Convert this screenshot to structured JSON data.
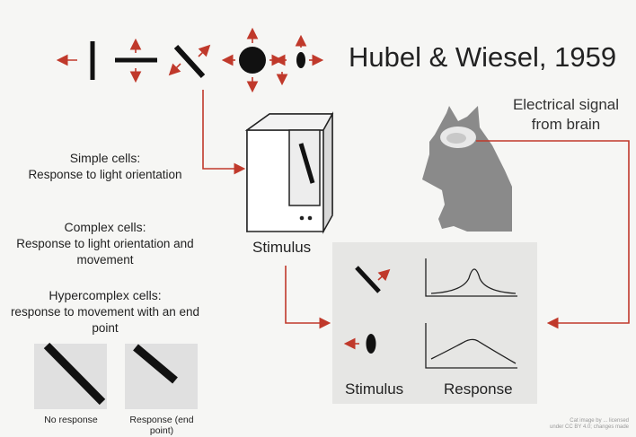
{
  "title": "Hubel & Wiesel, 1959",
  "electrical_label": "Electrical signal from brain",
  "monitor_label": "Stimulus",
  "cells": [
    {
      "heading": "Simple cells:",
      "desc": "Response to light orientation"
    },
    {
      "heading": "Complex cells:",
      "desc": "Response to light orientation and movement"
    },
    {
      "heading": "Hypercomplex cells:",
      "desc": "response to movement with an end point"
    }
  ],
  "panel": {
    "stimulus_label": "Stimulus",
    "response_label": "Response"
  },
  "examples": [
    {
      "caption": "No response"
    },
    {
      "caption": "Response (end point)"
    }
  ],
  "credit": {
    "line1": "Cat image by ... licensed",
    "line2": "under CC BY 4.0; changes made"
  },
  "colors": {
    "arrow": "#c0392b",
    "panel": "#e6e6e4",
    "cat": "#8a8a8a"
  }
}
